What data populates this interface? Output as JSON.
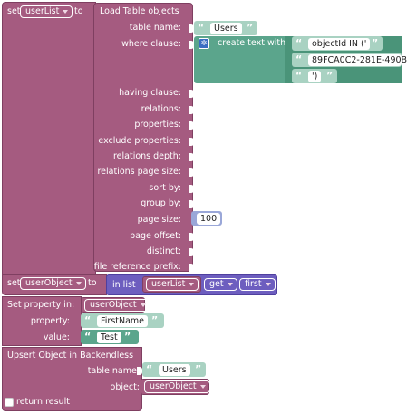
{
  "block_set_userlist": {
    "set_label": "set",
    "variable": "userList",
    "to_label": "to"
  },
  "block_load_table": {
    "title": "Load Table objects",
    "table_name_label": "table name:",
    "table_name_value": "Users",
    "where_clause_label": "where clause:",
    "create_text_label": "create text with",
    "text_items": [
      "objectId IN ('",
      "89FCA0C2-281E-490B",
      "')"
    ],
    "params": [
      "having clause:",
      "relations:",
      "properties:",
      "exclude properties:",
      "relations depth:",
      "relations page size:",
      "sort by:",
      "group by:",
      "page size:",
      "page offset:",
      "distinct:",
      "file reference prefix:"
    ],
    "page_size_value": "100"
  },
  "block_set_userobject": {
    "set_label": "set",
    "variable": "userObject",
    "to_label": "to",
    "in_list_label": "in list",
    "list_variable": "userList",
    "get_option": "get",
    "position_option": "first"
  },
  "block_set_property": {
    "title": "Set property in:",
    "object_variable": "userObject",
    "property_label": "property:",
    "property_value": "FirstName",
    "value_label": "value:",
    "value_value": "Test"
  },
  "block_upsert": {
    "title": "Upsert Object in Backendless",
    "table_name_label": "table name:",
    "table_name_value": "Users",
    "object_label": "object:",
    "object_variable": "userObject",
    "return_result_label": "return result"
  },
  "colors": {
    "block_purple": "#a55b80",
    "text_teal": "#5ba58c",
    "list_blue": "#6d5ebf",
    "math_blue": "#9aa7d8"
  }
}
